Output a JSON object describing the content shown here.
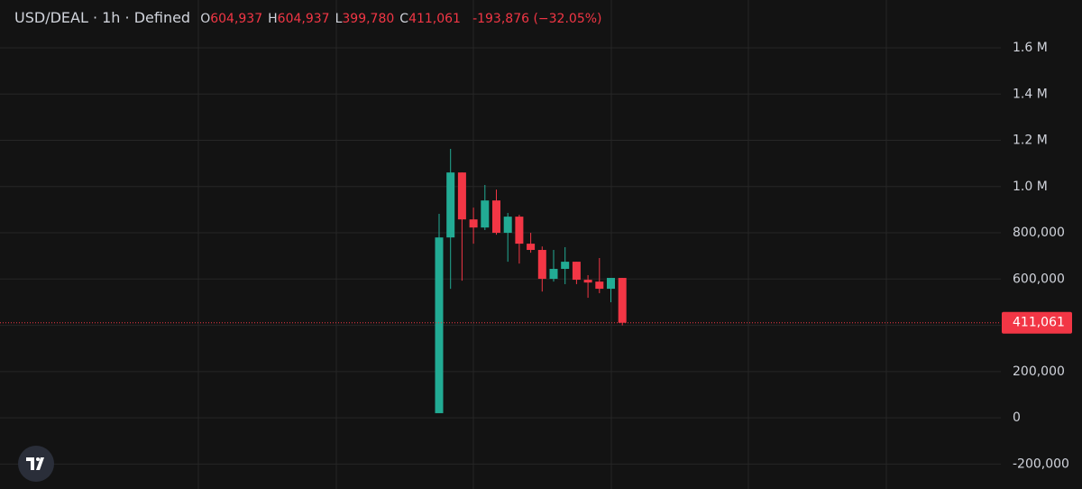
{
  "chart_data": {
    "type": "candlestick",
    "title": "USD/DEAL · 1h · Defined",
    "ohlc_legend": [
      {
        "key": "O",
        "text": "604,937"
      },
      {
        "key": "H",
        "text": "604,937"
      },
      {
        "key": "L",
        "text": "399,780"
      },
      {
        "key": "C",
        "text": "411,061"
      }
    ],
    "change": "-193,876 (−32.05%)",
    "categories": [
      null,
      null,
      null,
      null,
      null,
      null,
      null,
      null,
      null,
      null,
      null,
      null,
      null,
      null,
      null,
      null,
      null
    ],
    "open": [
      20000,
      780000,
      1061000,
      858000,
      823000,
      940000,
      800000,
      870000,
      753000,
      726000,
      601000,
      644000,
      675000,
      597000,
      589000,
      558000,
      604937
    ],
    "high": [
      882000,
      1163000,
      1061000,
      909000,
      1007000,
      987000,
      886000,
      878000,
      800000,
      741000,
      726000,
      738000,
      675000,
      617000,
      691000,
      605000,
      604937
    ],
    "low": [
      20000,
      558000,
      593000,
      753000,
      812000,
      792000,
      675000,
      667000,
      714000,
      546000,
      589000,
      578000,
      578000,
      519000,
      539000,
      500000,
      399780
    ],
    "close": [
      780000,
      1061000,
      858000,
      823000,
      940000,
      800000,
      870000,
      753000,
      726000,
      601000,
      644000,
      675000,
      597000,
      585000,
      558000,
      605000,
      411061
    ],
    "up_color": "#22ab94",
    "down_color": "#f23645",
    "last_price": {
      "value": 411061,
      "label": "411,061"
    },
    "ylim": [
      -308000,
      1807000
    ],
    "yticks": [
      {
        "value": -200000,
        "label": "-200,000"
      },
      0,
      {
        "value": 200000,
        "label": "200,000"
      },
      {
        "value": 400000,
        "label": ""
      },
      {
        "value": 600000,
        "label": "600,000"
      },
      {
        "value": 800000,
        "label": "800,000"
      },
      {
        "value": 1000000,
        "label": "1.0 M"
      },
      {
        "value": 1200000,
        "label": "1.2 M"
      },
      {
        "value": 1400000,
        "label": "1.4 M"
      },
      {
        "value": 1600000,
        "label": "1.6 M"
      }
    ],
    "grid": true
  }
}
